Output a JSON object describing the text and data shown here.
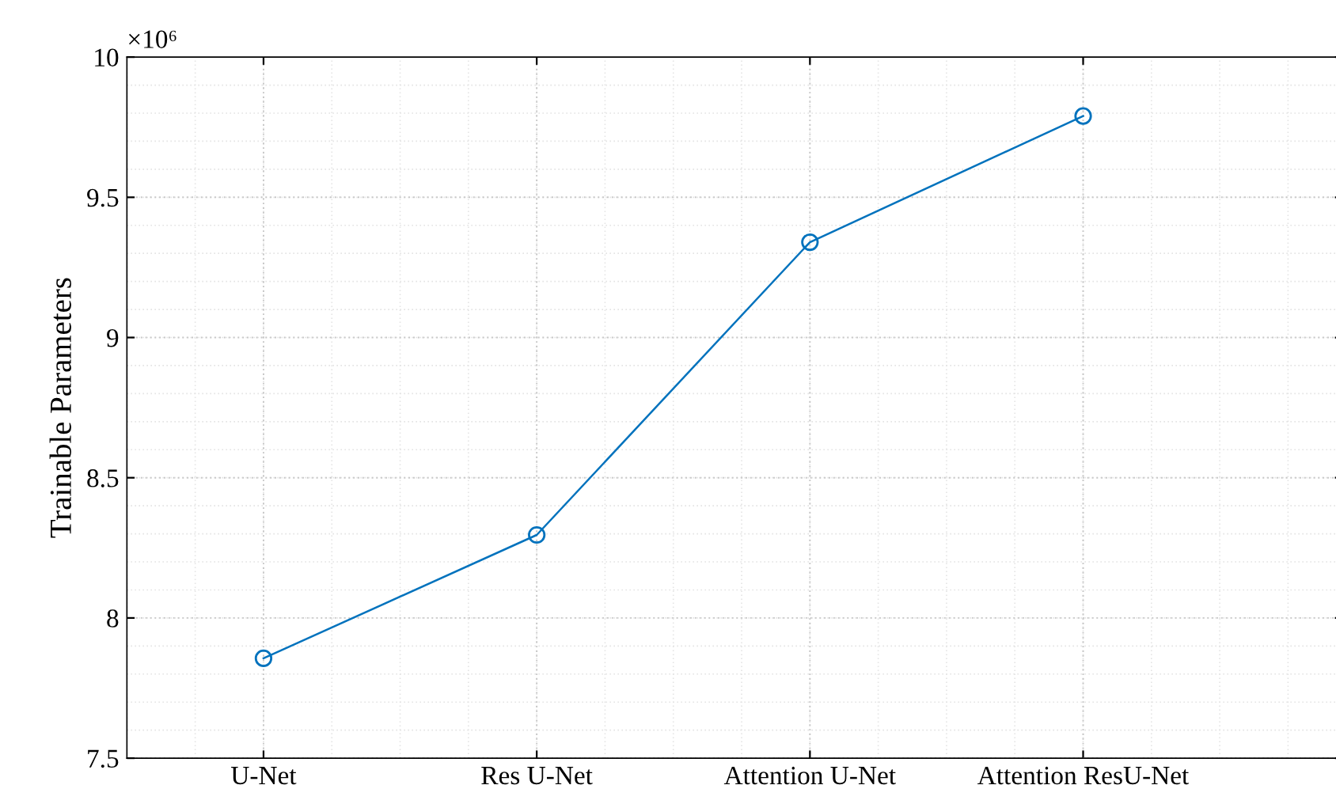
{
  "chart_data": {
    "type": "line",
    "ylabel": "Trainable Parameters",
    "categories": [
      "U-Net",
      "Res U-Net",
      "Attention U-Net",
      "Attention ResU-Net"
    ],
    "series": [
      {
        "color": "#0072bd",
        "values": [
          7.856,
          8.296,
          9.34,
          9.79
        ]
      }
    ],
    "ylim": [
      7.5,
      10
    ],
    "yticks": [
      7.5,
      8,
      8.5,
      9,
      9.5,
      10
    ],
    "annotations": [
      "×10⁶"
    ],
    "grid": true,
    "marker": "circle",
    "line_style": "solid"
  }
}
